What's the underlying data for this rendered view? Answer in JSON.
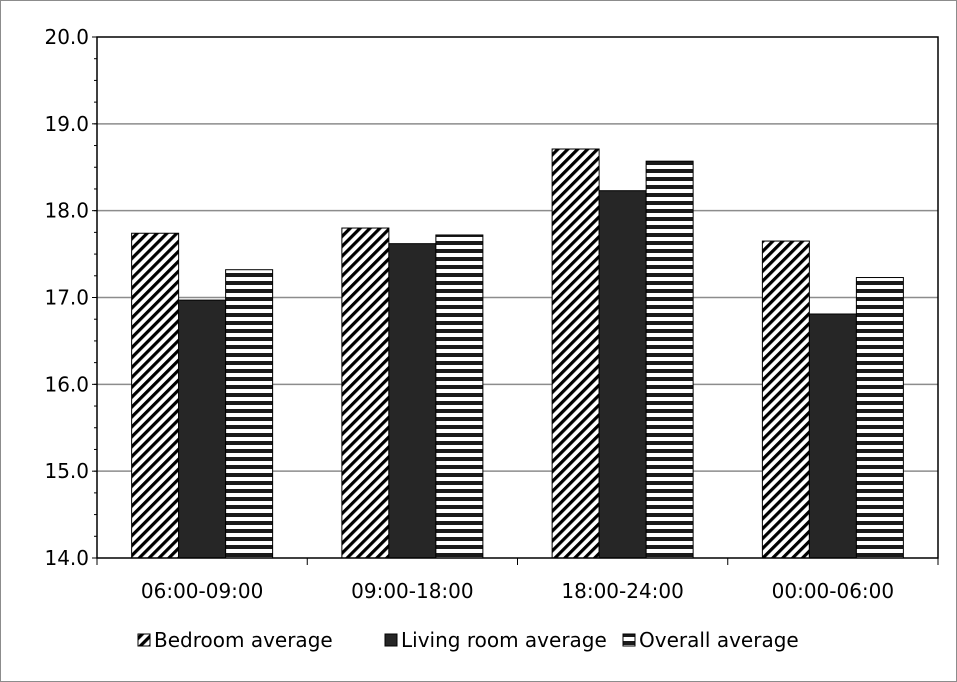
{
  "chart_data": {
    "type": "bar",
    "categories": [
      "06:00-09:00",
      "09:00-18:00",
      "18:00-24:00",
      "00:00-06:00"
    ],
    "series": [
      {
        "name": "Bedroom average",
        "values": [
          17.74,
          17.8,
          18.71,
          17.65
        ],
        "pattern": "diagonal-hatch"
      },
      {
        "name": "Living room average",
        "values": [
          16.97,
          17.62,
          18.23,
          16.81
        ],
        "pattern": "solid-dark"
      },
      {
        "name": "Overall average",
        "values": [
          17.32,
          17.72,
          18.57,
          17.23
        ],
        "pattern": "horizontal-stripes"
      }
    ],
    "ylim": [
      14.0,
      20.0
    ],
    "yticks": [
      "14.0",
      "15.0",
      "16.0",
      "17.0",
      "18.0",
      "19.0",
      "20.0"
    ],
    "grid": true,
    "legend_position": "bottom",
    "colors": {
      "dark_fill": "#262626",
      "stroke": "#000000",
      "grid": "#8c8c8c",
      "hatch_bg": "#ffffff"
    }
  }
}
